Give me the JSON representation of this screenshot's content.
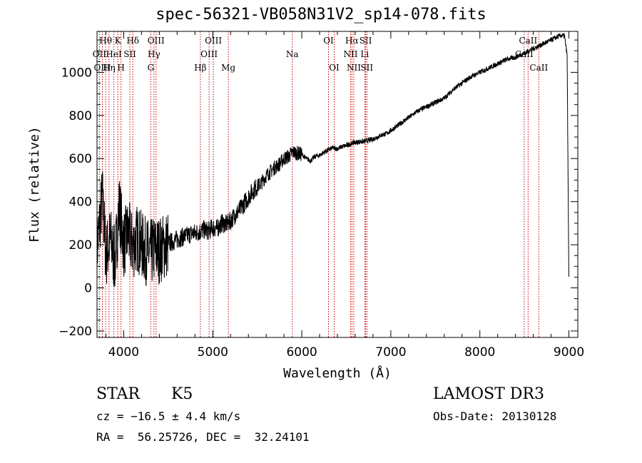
{
  "chart_data": {
    "type": "line",
    "title": "spec-56321-VB058N31V2_sp14-078.fits",
    "xlabel": "Wavelength (Å)",
    "ylabel": "Flux (relative)",
    "xlim": [
      3700,
      9100
    ],
    "ylim": [
      -230,
      1190
    ],
    "x_ticks": [
      4000,
      5000,
      6000,
      7000,
      8000,
      9000
    ],
    "x_tick_labels": [
      "4000",
      "5000",
      "6000",
      "7000",
      "8000",
      "9000"
    ],
    "y_ticks": [
      -200,
      0,
      200,
      400,
      600,
      800,
      1000
    ],
    "y_tick_labels": [
      "−200",
      "0",
      "200",
      "400",
      "600",
      "800",
      "1000"
    ],
    "grid": false,
    "series": [
      {
        "name": "spectrum",
        "x": [
          3700,
          3760,
          3800,
          3850,
          3900,
          3950,
          4000,
          4050,
          4100,
          4150,
          4200,
          4250,
          4300,
          4350,
          4400,
          4450,
          4500,
          4550,
          4600,
          4650,
          4700,
          4750,
          4800,
          4850,
          4900,
          4950,
          5000,
          5050,
          5100,
          5150,
          5200,
          5250,
          5300,
          5350,
          5400,
          5450,
          5500,
          5550,
          5600,
          5650,
          5700,
          5750,
          5800,
          5850,
          5900,
          5950,
          6000,
          6050,
          6100,
          6150,
          6200,
          6250,
          6300,
          6350,
          6400,
          6450,
          6500,
          6550,
          6600,
          6650,
          6700,
          6750,
          6800,
          6850,
          6900,
          6950,
          7000,
          7100,
          7200,
          7300,
          7400,
          7500,
          7600,
          7700,
          7800,
          7900,
          8000,
          8100,
          8200,
          8300,
          8400,
          8450,
          8500,
          8550,
          8600,
          8650,
          8700,
          8750,
          8800,
          8850,
          8900,
          8950,
          8980,
          9000
        ],
        "values": [
          180,
          420,
          150,
          230,
          120,
          380,
          200,
          260,
          190,
          230,
          200,
          170,
          160,
          180,
          175,
          190,
          205,
          215,
          225,
          235,
          240,
          250,
          255,
          260,
          270,
          265,
          280,
          275,
          300,
          295,
          310,
          340,
          360,
          390,
          420,
          450,
          470,
          490,
          520,
          540,
          560,
          575,
          600,
          610,
          630,
          625,
          620,
          600,
          590,
          610,
          615,
          630,
          640,
          650,
          645,
          655,
          660,
          670,
          675,
          678,
          680,
          685,
          690,
          700,
          710,
          715,
          730,
          760,
          790,
          820,
          840,
          860,
          880,
          920,
          950,
          980,
          1000,
          1020,
          1040,
          1060,
          1070,
          1080,
          1090,
          1100,
          1110,
          1120,
          1130,
          1140,
          1150,
          1160,
          1170,
          1170,
          1080,
          30
        ]
      }
    ],
    "spectral_lines": [
      {
        "label": "Hθ",
        "wavelength": 3797,
        "row": 1
      },
      {
        "label": "OII",
        "wavelength": 3727,
        "row": 2
      },
      {
        "label": "OIII",
        "wavelength": 3760,
        "row": 3
      },
      {
        "label": "K",
        "wavelength": 3934,
        "row": 1
      },
      {
        "label": "HeI",
        "wavelength": 3889,
        "row": 2
      },
      {
        "label": "Hη",
        "wavelength": 3835,
        "row": 3
      },
      {
        "label": "SII",
        "wavelength": 4069,
        "row": 2
      },
      {
        "label": "H",
        "wavelength": 3969,
        "row": 3
      },
      {
        "label": "Hδ",
        "wavelength": 4102,
        "row": 1
      },
      {
        "label": "OIII",
        "wavelength": 4363,
        "row": 1
      },
      {
        "label": "Hγ",
        "wavelength": 4340,
        "row": 2
      },
      {
        "label": "G",
        "wavelength": 4304,
        "row": 3
      },
      {
        "label": "OIII",
        "wavelength": 5007,
        "row": 1
      },
      {
        "label": "OIII",
        "wavelength": 4959,
        "row": 2
      },
      {
        "label": "Hβ",
        "wavelength": 4861,
        "row": 3
      },
      {
        "label": "Mg",
        "wavelength": 5175,
        "row": 3
      },
      {
        "label": "Na",
        "wavelength": 5893,
        "row": 2
      },
      {
        "label": "OI",
        "wavelength": 6300,
        "row": 1
      },
      {
        "label": "OI",
        "wavelength": 6364,
        "row": 3
      },
      {
        "label": "Hα",
        "wavelength": 6563,
        "row": 1
      },
      {
        "label": "NII",
        "wavelength": 6548,
        "row": 2
      },
      {
        "label": "NII",
        "wavelength": 6584,
        "row": 3
      },
      {
        "label": "SII",
        "wavelength": 6717,
        "row": 1
      },
      {
        "label": "Li",
        "wavelength": 6707,
        "row": 2
      },
      {
        "label": "SII",
        "wavelength": 6731,
        "row": 3
      },
      {
        "label": "CaII",
        "wavelength": 8542,
        "row": 1
      },
      {
        "label": "CaII",
        "wavelength": 8498,
        "row": 2
      },
      {
        "label": "CaII",
        "wavelength": 8662,
        "row": 3
      }
    ]
  },
  "info": {
    "object_type": "STAR",
    "subclass": "K5",
    "survey": "LAMOST DR3",
    "cz": "cz = −16.5 ± 4.4 km/s",
    "obs_date": "Obs-Date: 20130128",
    "coords": "RA =  56.25726, DEC =  32.24101"
  },
  "colors": {
    "line": "#000000",
    "spectral_line": "#cc0000",
    "background": "#ffffff"
  }
}
